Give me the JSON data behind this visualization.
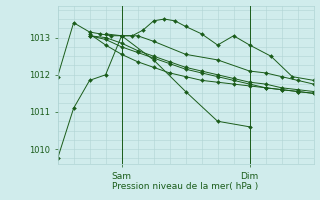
{
  "title": "",
  "xlabel": "Pression niveau de la mer( hPa )",
  "ylabel": "",
  "bg_color": "#d0ecec",
  "plot_bg_color": "#d0ecec",
  "grid_color": "#b0d4d4",
  "line_color": "#1a5c1a",
  "marker_color": "#1a5c1a",
  "ylim": [
    1009.6,
    1013.85
  ],
  "xlim": [
    0,
    48
  ],
  "yticks": [
    1010,
    1011,
    1012,
    1013
  ],
  "xtick_positions": [
    12,
    36
  ],
  "xtick_labels": [
    "Sam",
    "Dim"
  ],
  "vlines": [
    12,
    36
  ],
  "series": [
    [
      1009.75,
      1011.1,
      1011.85,
      1012.0,
      1013.05,
      1012.4,
      1011.55,
      1010.75,
      1010.6
    ],
    [
      1011.95,
      1013.4,
      1013.15,
      1013.1,
      1013.05,
      1013.05,
      1013.05,
      1013.2,
      1013.45,
      1013.5,
      1013.45,
      1013.3,
      1013.1,
      1012.8,
      1013.05,
      1012.8,
      1012.5,
      1011.95,
      1011.85
    ],
    [
      1013.1,
      1013.05,
      1013.05,
      1012.9,
      1012.55,
      1012.4,
      1012.1,
      1012.05,
      1011.95,
      1011.85,
      1011.75
    ],
    [
      1013.05,
      1013.0,
      1012.85,
      1012.65,
      1012.5,
      1012.35,
      1012.2,
      1012.1,
      1012.0,
      1011.9,
      1011.8,
      1011.75,
      1011.65,
      1011.6,
      1011.55
    ],
    [
      1013.05,
      1012.95,
      1012.75,
      1012.6,
      1012.45,
      1012.3,
      1012.15,
      1012.05,
      1011.95,
      1011.85,
      1011.75,
      1011.65,
      1011.6,
      1011.55,
      1011.5
    ],
    [
      1013.1,
      1012.8,
      1012.55,
      1012.35,
      1012.2,
      1012.05,
      1011.95,
      1011.85,
      1011.8,
      1011.75,
      1011.7,
      1011.65,
      1011.6,
      1011.55,
      1011.5
    ]
  ],
  "series_x": [
    [
      0,
      3,
      6,
      9,
      12,
      18,
      24,
      30,
      36
    ],
    [
      0,
      3,
      6,
      8,
      10,
      12,
      14,
      16,
      18,
      20,
      22,
      24,
      27,
      30,
      33,
      36,
      40,
      44,
      48
    ],
    [
      9,
      12,
      15,
      18,
      24,
      30,
      36,
      39,
      42,
      45,
      48
    ],
    [
      6,
      9,
      12,
      15,
      18,
      21,
      24,
      27,
      30,
      33,
      36,
      39,
      42,
      45,
      48
    ],
    [
      6,
      9,
      12,
      15,
      18,
      21,
      24,
      27,
      30,
      33,
      36,
      39,
      42,
      45,
      48
    ],
    [
      6,
      9,
      12,
      15,
      18,
      21,
      24,
      27,
      30,
      33,
      36,
      39,
      42,
      45,
      48
    ]
  ]
}
